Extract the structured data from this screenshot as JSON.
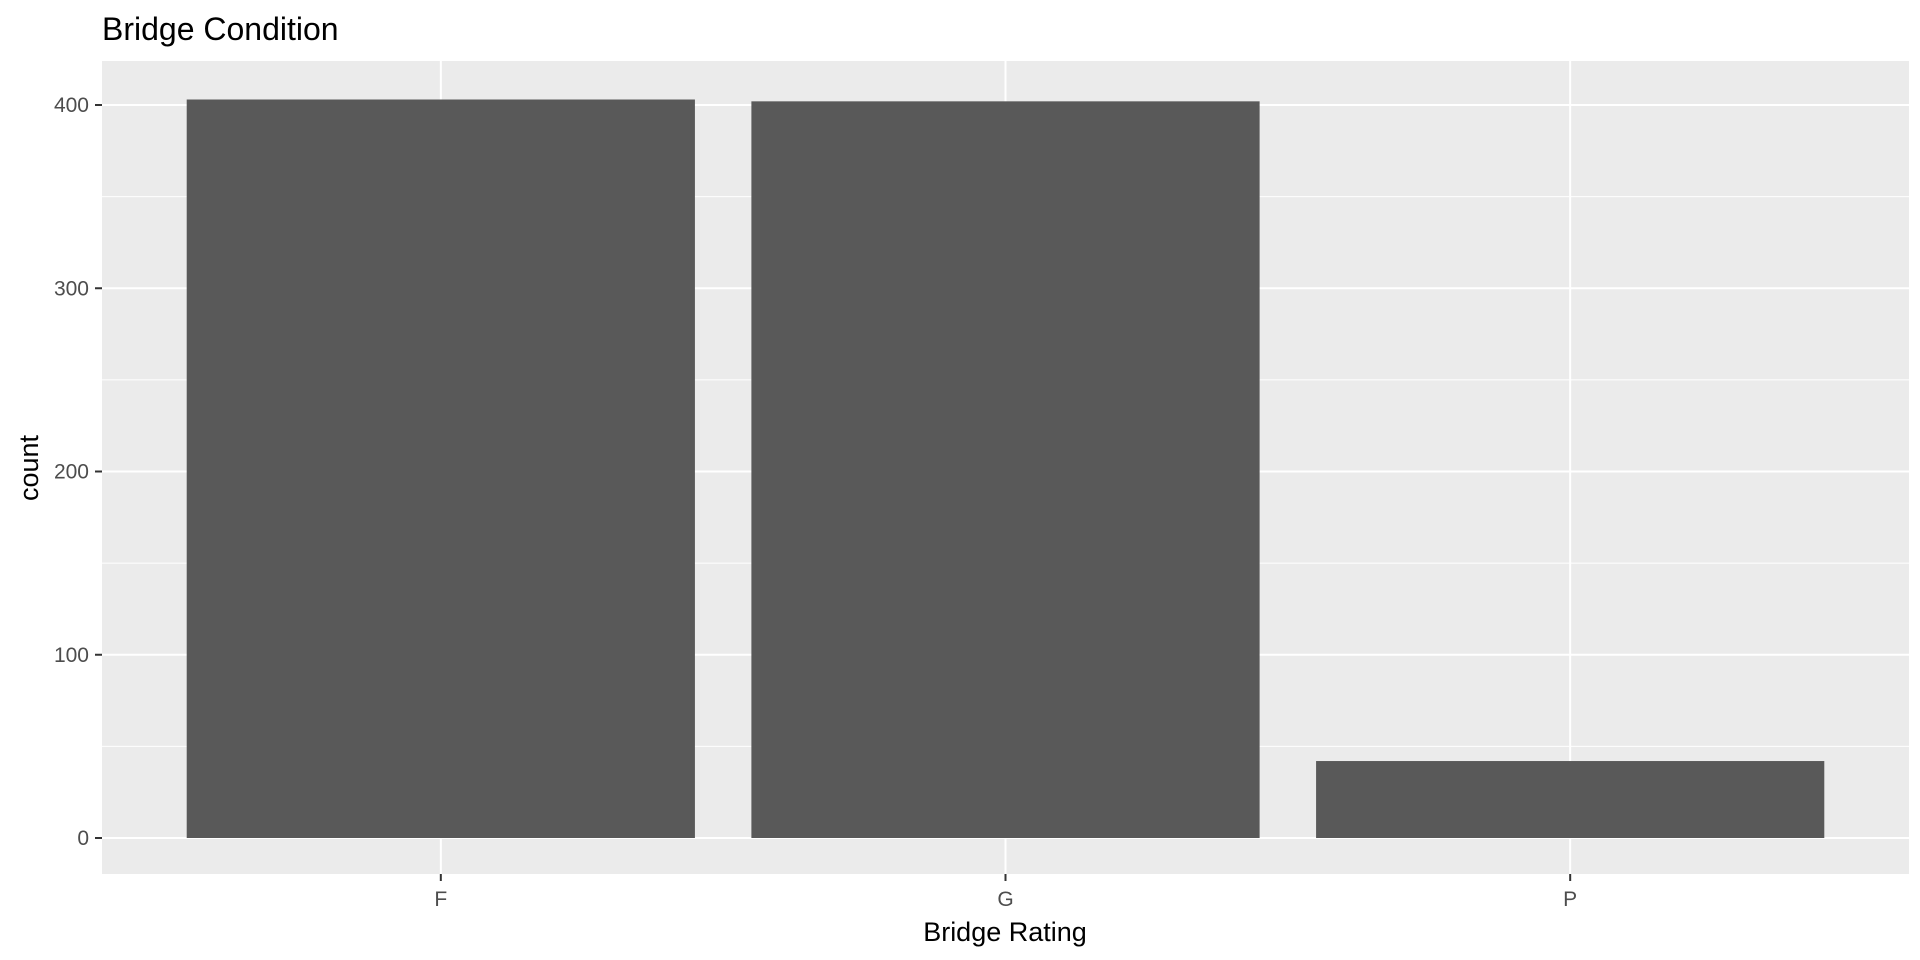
{
  "chart_data": {
    "type": "bar",
    "title": "Bridge Condition",
    "xlabel": "Bridge Rating",
    "ylabel": "count",
    "categories": [
      "F",
      "G",
      "P"
    ],
    "values": [
      403,
      402,
      42
    ],
    "ylim": [
      0,
      420
    ],
    "yticks": [
      0,
      100,
      200,
      300,
      400
    ],
    "grid": true,
    "legend": "none",
    "colors": {
      "bar": "#595959",
      "panel": "#ebebeb",
      "grid": "#ffffff",
      "tick": "#333333"
    }
  }
}
